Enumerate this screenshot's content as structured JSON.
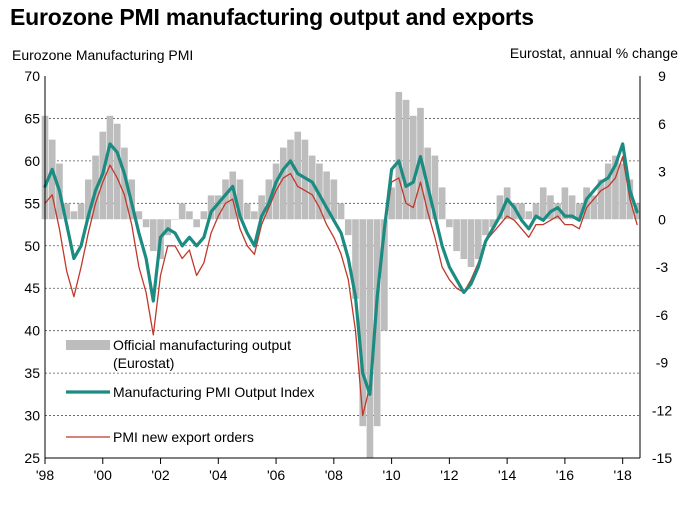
{
  "title": "Eurozone PMI manufacturing output and exports",
  "chart_data": {
    "type": "line",
    "title": "Eurozone PMI manufacturing output and exports",
    "ylabel_left": "Eurozone Manufacturing PMI",
    "ylabel_right": "Eurostat, annual % change",
    "left_axis": {
      "ylim": [
        25,
        70
      ],
      "ticks": [
        25,
        30,
        35,
        40,
        45,
        50,
        55,
        60,
        65,
        70
      ]
    },
    "right_axis": {
      "ylim": [
        -15,
        9
      ],
      "ticks": [
        -15,
        -12,
        -9,
        -6,
        -3,
        0,
        3,
        6,
        9
      ]
    },
    "x_axis": {
      "range": [
        1998,
        2018.6
      ],
      "ticks": [
        1998,
        2000,
        2002,
        2004,
        2006,
        2008,
        2010,
        2012,
        2014,
        2016,
        2018
      ],
      "tick_labels": [
        "'98",
        "'00",
        "'02",
        "'04",
        "'06",
        "'08",
        "'10",
        "'12",
        "'14",
        "'16",
        "'18"
      ]
    },
    "grid": "horizontal dashed at left-axis ticks",
    "legend": {
      "placement": "bottom-left",
      "entries": [
        "Official manufacturing output\n(Eurostat)",
        "Manufacturing PMI Output Index",
        "PMI new export orders"
      ]
    },
    "colors": {
      "output_bars": "#bdbdbd",
      "pmi_output_line": "#1c8c82",
      "export_orders_line": "#c0392b"
    },
    "series": [
      {
        "name": "Official manufacturing output\n(Eurostat)",
        "axis": "right",
        "style": "bars",
        "x": [
          1998.0,
          1998.25,
          1998.5,
          1998.75,
          1999.0,
          1999.25,
          1999.5,
          1999.75,
          2000.0,
          2000.25,
          2000.5,
          2000.75,
          2001.0,
          2001.25,
          2001.5,
          2001.75,
          2002.0,
          2002.25,
          2002.5,
          2002.75,
          2003.0,
          2003.25,
          2003.5,
          2003.75,
          2004.0,
          2004.25,
          2004.5,
          2004.75,
          2005.0,
          2005.25,
          2005.5,
          2005.75,
          2006.0,
          2006.25,
          2006.5,
          2006.75,
          2007.0,
          2007.25,
          2007.5,
          2007.75,
          2008.0,
          2008.25,
          2008.5,
          2008.75,
          2009.0,
          2009.25,
          2009.5,
          2009.75,
          2010.0,
          2010.25,
          2010.5,
          2010.75,
          2011.0,
          2011.25,
          2011.5,
          2011.75,
          2012.0,
          2012.25,
          2012.5,
          2012.75,
          2013.0,
          2013.25,
          2013.5,
          2013.75,
          2014.0,
          2014.25,
          2014.5,
          2014.75,
          2015.0,
          2015.25,
          2015.5,
          2015.75,
          2016.0,
          2016.25,
          2016.5,
          2016.75,
          2017.0,
          2017.25,
          2017.5,
          2017.75,
          2018.0,
          2018.25,
          2018.5
        ],
        "values": [
          6.5,
          5.0,
          3.5,
          1.0,
          0.5,
          1.0,
          2.5,
          4.0,
          5.5,
          6.5,
          6.0,
          4.5,
          2.5,
          0.5,
          -0.5,
          -2.0,
          -2.5,
          -1.0,
          0.0,
          1.0,
          0.5,
          -0.5,
          0.5,
          1.5,
          1.5,
          2.5,
          3.0,
          2.5,
          1.0,
          0.5,
          1.5,
          2.5,
          3.5,
          4.5,
          5.0,
          5.5,
          5.0,
          4.0,
          3.5,
          3.0,
          2.5,
          1.0,
          -1.0,
          -5.0,
          -13.0,
          -16.0,
          -13.0,
          -7.0,
          2.0,
          8.0,
          7.5,
          6.5,
          7.0,
          4.5,
          4.0,
          2.0,
          -0.5,
          -2.0,
          -2.5,
          -3.0,
          -2.5,
          -1.0,
          -0.5,
          1.5,
          2.0,
          1.0,
          1.0,
          0.5,
          1.0,
          2.0,
          1.5,
          1.0,
          2.0,
          1.5,
          1.0,
          2.0,
          1.5,
          2.5,
          3.5,
          4.0,
          3.5,
          2.5,
          1.0
        ]
      },
      {
        "name": "Manufacturing PMI Output Index",
        "axis": "left",
        "style": "line",
        "x": [
          1998.0,
          1998.25,
          1998.5,
          1998.75,
          1999.0,
          1999.25,
          1999.5,
          1999.75,
          2000.0,
          2000.25,
          2000.5,
          2000.75,
          2001.0,
          2001.25,
          2001.5,
          2001.75,
          2002.0,
          2002.25,
          2002.5,
          2002.75,
          2003.0,
          2003.25,
          2003.5,
          2003.75,
          2004.0,
          2004.25,
          2004.5,
          2004.75,
          2005.0,
          2005.25,
          2005.5,
          2005.75,
          2006.0,
          2006.25,
          2006.5,
          2006.75,
          2007.0,
          2007.25,
          2007.5,
          2007.75,
          2008.0,
          2008.25,
          2008.5,
          2008.75,
          2009.0,
          2009.25,
          2009.5,
          2009.75,
          2010.0,
          2010.25,
          2010.5,
          2010.75,
          2011.0,
          2011.25,
          2011.5,
          2011.75,
          2012.0,
          2012.25,
          2012.5,
          2012.75,
          2013.0,
          2013.25,
          2013.5,
          2013.75,
          2014.0,
          2014.25,
          2014.5,
          2014.75,
          2015.0,
          2015.25,
          2015.5,
          2015.75,
          2016.0,
          2016.25,
          2016.5,
          2016.75,
          2017.0,
          2017.25,
          2017.5,
          2017.75,
          2018.0,
          2018.25,
          2018.5
        ],
        "values": [
          57.0,
          59.0,
          56.5,
          52.5,
          48.5,
          50.0,
          53.5,
          56.5,
          58.5,
          62.0,
          61.0,
          58.5,
          55.0,
          51.5,
          48.5,
          43.5,
          51.0,
          52.0,
          51.5,
          50.0,
          51.0,
          50.0,
          51.0,
          54.0,
          55.0,
          56.0,
          57.0,
          53.5,
          51.5,
          50.0,
          53.5,
          55.0,
          57.5,
          59.0,
          60.0,
          58.5,
          58.0,
          57.5,
          56.0,
          54.5,
          53.0,
          51.5,
          48.5,
          44.0,
          35.0,
          32.5,
          44.0,
          52.0,
          59.0,
          60.0,
          57.0,
          57.5,
          60.5,
          57.0,
          53.5,
          50.0,
          47.5,
          46.0,
          44.5,
          45.5,
          47.5,
          50.5,
          52.0,
          53.5,
          55.5,
          54.5,
          53.0,
          52.0,
          53.5,
          53.0,
          54.0,
          54.5,
          53.5,
          53.5,
          53.0,
          55.5,
          56.5,
          57.5,
          58.0,
          59.5,
          62.0,
          56.5,
          54.0
        ]
      },
      {
        "name": "PMI new export orders",
        "axis": "left",
        "style": "line",
        "x": [
          1998.0,
          1998.25,
          1998.5,
          1998.75,
          1999.0,
          1999.25,
          1999.5,
          1999.75,
          2000.0,
          2000.25,
          2000.5,
          2000.75,
          2001.0,
          2001.25,
          2001.5,
          2001.75,
          2002.0,
          2002.25,
          2002.5,
          2002.75,
          2003.0,
          2003.25,
          2003.5,
          2003.75,
          2004.0,
          2004.25,
          2004.5,
          2004.75,
          2005.0,
          2005.25,
          2005.5,
          2005.75,
          2006.0,
          2006.25,
          2006.5,
          2006.75,
          2007.0,
          2007.25,
          2007.5,
          2007.75,
          2008.0,
          2008.25,
          2008.5,
          2008.75,
          2009.0,
          2009.25,
          2009.5,
          2009.75,
          2010.0,
          2010.25,
          2010.5,
          2010.75,
          2011.0,
          2011.25,
          2011.5,
          2011.75,
          2012.0,
          2012.25,
          2012.5,
          2012.75,
          2013.0,
          2013.25,
          2013.5,
          2013.75,
          2014.0,
          2014.25,
          2014.5,
          2014.75,
          2015.0,
          2015.25,
          2015.5,
          2015.75,
          2016.0,
          2016.25,
          2016.5,
          2016.75,
          2017.0,
          2017.25,
          2017.5,
          2017.75,
          2018.0,
          2018.25,
          2018.5
        ],
        "values": [
          55.0,
          56.0,
          52.0,
          47.0,
          44.0,
          47.5,
          51.5,
          55.0,
          57.5,
          59.5,
          58.0,
          56.0,
          52.5,
          47.5,
          44.5,
          39.5,
          46.5,
          50.0,
          50.0,
          48.5,
          49.5,
          46.5,
          48.0,
          51.5,
          53.5,
          55.0,
          55.5,
          52.0,
          50.0,
          49.0,
          52.5,
          54.5,
          56.5,
          58.0,
          58.5,
          57.0,
          56.5,
          56.0,
          54.5,
          52.5,
          51.0,
          49.0,
          46.0,
          40.0,
          30.0,
          33.5,
          43.0,
          51.5,
          57.5,
          58.0,
          55.0,
          54.5,
          57.5,
          54.0,
          51.0,
          47.5,
          46.0,
          45.0,
          44.5,
          46.0,
          48.0,
          50.5,
          51.5,
          52.5,
          53.5,
          53.0,
          52.0,
          51.0,
          52.5,
          52.5,
          53.0,
          53.5,
          52.5,
          52.5,
          52.0,
          54.5,
          55.5,
          56.5,
          57.0,
          58.0,
          60.5,
          55.5,
          52.5
        ]
      }
    ]
  }
}
